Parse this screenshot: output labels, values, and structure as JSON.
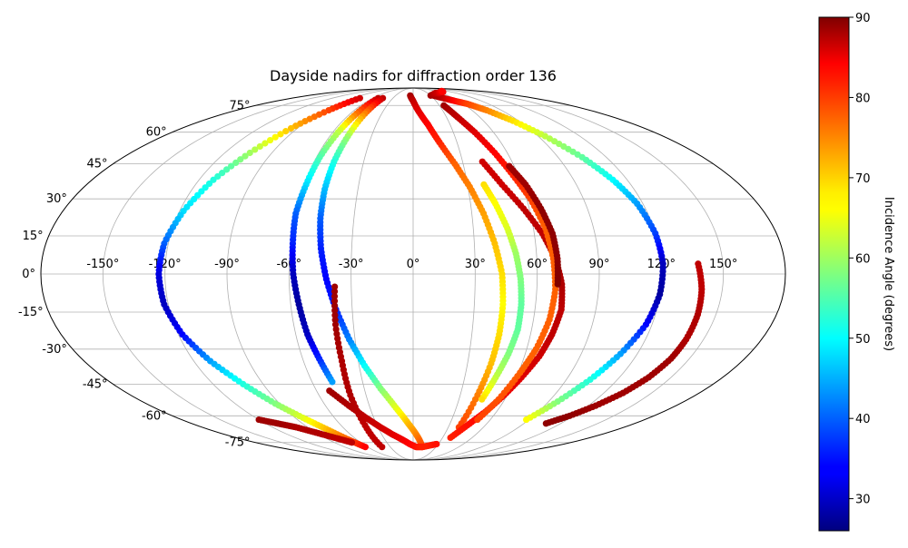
{
  "chart_data": {
    "type": "scatter",
    "projection": "mollweide",
    "title": "Dayside nadirs for diffraction order 136",
    "xlabel": "",
    "ylabel": "",
    "grid": true,
    "longitude_ticks": [
      "-150°",
      "-120°",
      "-90°",
      "-60°",
      "-30°",
      "0°",
      "30°",
      "60°",
      "90°",
      "120°",
      "150°"
    ],
    "longitude_tick_values": [
      -150,
      -120,
      -90,
      -60,
      -30,
      0,
      30,
      60,
      90,
      120,
      150
    ],
    "latitude_ticks": [
      "75°",
      "60°",
      "45°",
      "30°",
      "15°",
      "0°",
      "-15°",
      "-30°",
      "-45°",
      "-60°",
      "-75°"
    ],
    "latitude_tick_values": [
      75,
      60,
      45,
      30,
      15,
      0,
      -15,
      -30,
      -45,
      -60,
      -75
    ],
    "colorbar": {
      "label": "Incidence Angle (degrees)",
      "colormap": "jet",
      "range": [
        26,
        90
      ],
      "ticks": [
        "30",
        "40",
        "50",
        "60",
        "70",
        "80",
        "90"
      ],
      "tick_values": [
        30,
        40,
        50,
        60,
        70,
        80,
        90
      ]
    },
    "series": [
      {
        "lon": [
          -79,
          -86,
          -95,
          -104,
          -112,
          -118,
          -122,
          -123,
          -122,
          -118,
          -111,
          -102,
          -93,
          -84,
          -76,
          -69,
          -63
        ],
        "lat": [
          80,
          72,
          62,
          50,
          38,
          25,
          12,
          0,
          -12,
          -24,
          -35,
          -45,
          -54,
          -61,
          -67,
          -73,
          -78
        ],
        "incidence": [
          85,
          78,
          70,
          60,
          52,
          48,
          40,
          32,
          30,
          34,
          44,
          52,
          58,
          64,
          70,
          76,
          82
        ]
      },
      {
        "lon": [
          -52,
          -54,
          -56,
          -58,
          -59,
          -60,
          -59,
          -58,
          -56,
          -54,
          -51,
          -48
        ],
        "lat": [
          80,
          70,
          60,
          48,
          36,
          24,
          12,
          0,
          -12,
          -24,
          -34,
          -44
        ],
        "incidence": [
          86,
          75,
          62,
          55,
          48,
          40,
          36,
          30,
          28,
          30,
          36,
          44
        ]
      },
      {
        "lon": [
          -45,
          -46,
          -47,
          -48,
          -48,
          -47,
          -45,
          -42,
          -38,
          -33,
          -27,
          -20,
          -12,
          -4,
          4,
          12
        ],
        "lat": [
          80,
          70,
          58,
          46,
          34,
          22,
          10,
          -2,
          -14,
          -26,
          -37,
          -47,
          -56,
          -64,
          -71,
          -78
        ],
        "incidence": [
          86,
          74,
          60,
          52,
          46,
          40,
          36,
          34,
          36,
          42,
          50,
          58,
          64,
          70,
          74,
          78
        ]
      },
      {
        "lon": [
          -38,
          -39,
          -39,
          -40,
          -40,
          -41
        ],
        "lat": [
          -5,
          -20,
          -35,
          -50,
          -65,
          -78
        ],
        "incidence": [
          88,
          88,
          87,
          87,
          86,
          86
        ]
      },
      {
        "lon": [
          -52,
          -44,
          -36,
          -28,
          -20,
          -12,
          -4,
          4,
          12,
          20,
          28
        ],
        "lat": [
          -48,
          -55,
          -61,
          -66,
          -70,
          -73,
          -76,
          -78,
          -78,
          -77,
          -76
        ],
        "incidence": [
          88,
          87,
          86,
          85,
          84,
          83,
          82,
          81,
          80,
          80,
          81
        ]
      },
      {
        "lon": [
          -5,
          0,
          5,
          12,
          18,
          25,
          31,
          36,
          40,
          43,
          44,
          44,
          43,
          41,
          39
        ],
        "lat": [
          82,
          78,
          72,
          64,
          55,
          45,
          35,
          24,
          12,
          0,
          -12,
          -24,
          -36,
          -50,
          -66
        ],
        "incidence": [
          88,
          86,
          84,
          82,
          80,
          76,
          74,
          72,
          70,
          68,
          66,
          68,
          70,
          74,
          78
        ]
      },
      {
        "lon": [
          38,
          45,
          52,
          58,
          63,
          68,
          71,
          73,
          72,
          69,
          64,
          57,
          49,
          42
        ],
        "lat": [
          -72,
          -65,
          -58,
          -50,
          -42,
          -33,
          -24,
          -14,
          -4,
          6,
          16,
          26,
          36,
          46
        ],
        "incidence": [
          80,
          81,
          82,
          83,
          84,
          85,
          86,
          86,
          87,
          87,
          86,
          86,
          85,
          85
        ]
      },
      {
        "lon": [
          35,
          40,
          46,
          52,
          57,
          62,
          66,
          68,
          69,
          68,
          65,
          61,
          56,
          50
        ],
        "lat": [
          75,
          68,
          60,
          50,
          40,
          30,
          18,
          6,
          -6,
          -18,
          -30,
          -40,
          -52,
          -62
        ],
        "incidence": [
          88,
          86,
          84,
          82,
          80,
          78,
          76,
          76,
          76,
          76,
          76,
          76,
          77,
          78
        ]
      },
      {
        "lon": [
          39,
          43,
          47,
          50,
          52,
          53,
          53,
          51,
          48,
          45
        ],
        "lat": [
          36,
          28,
          18,
          8,
          -2,
          -12,
          -22,
          -32,
          -42,
          -52
        ],
        "incidence": [
          68,
          66,
          64,
          60,
          58,
          56,
          56,
          58,
          62,
          68
        ]
      },
      {
        "lon": [
          57,
          62,
          66,
          69,
          70,
          70
        ],
        "lat": [
          44,
          36,
          26,
          16,
          6,
          -4
        ],
        "incidence": [
          88,
          88,
          89,
          89,
          89,
          90
        ]
      },
      {
        "lon": [
          35,
          45,
          55,
          65,
          75,
          85,
          95,
          105,
          112,
          117,
          120,
          121,
          120,
          117,
          111,
          104,
          96,
          88
        ],
        "lat": [
          82,
          80,
          78,
          76,
          72,
          66,
          58,
          48,
          38,
          28,
          16,
          4,
          -8,
          -20,
          -32,
          -43,
          -53,
          -62
        ],
        "incidence": [
          88,
          86,
          82,
          78,
          74,
          68,
          62,
          56,
          50,
          44,
          38,
          30,
          28,
          34,
          44,
          52,
          58,
          66
        ]
      },
      {
        "lon": [
          138,
          140,
          141,
          141,
          140,
          137,
          132,
          125,
          117,
          108
        ],
        "lat": [
          4,
          -6,
          -16,
          -26,
          -34,
          -42,
          -49,
          -55,
          -60,
          -64
        ],
        "incidence": [
          86,
          86,
          87,
          87,
          88,
          88,
          88,
          88,
          89,
          89
        ]
      },
      {
        "lon": [
          -70,
          -80,
          -90,
          -100,
          -110,
          -120
        ],
        "lat": [
          -75,
          -72,
          -69,
          -66,
          -64,
          -62
        ],
        "incidence": [
          86,
          86,
          87,
          87,
          88,
          88
        ]
      },
      {
        "lon": [
          30,
          38,
          46,
          54,
          62,
          70,
          77
        ],
        "lat": [
          82,
          83,
          84,
          84,
          85,
          85,
          86
        ],
        "incidence": [
          88,
          87,
          86,
          85,
          84,
          83,
          82
        ]
      }
    ]
  }
}
